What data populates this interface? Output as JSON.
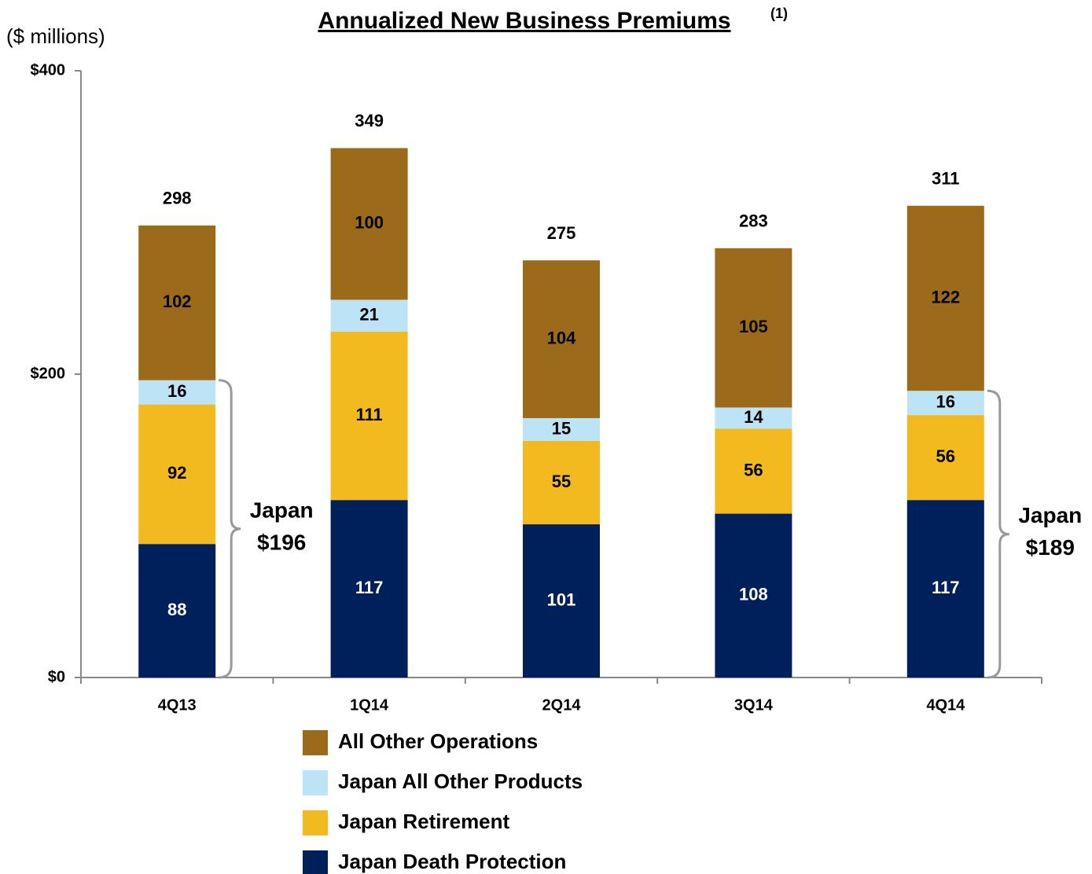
{
  "chart_data": {
    "type": "stacked_bar",
    "title": "Annualized New Business Premiums",
    "title_superscript": "(1)",
    "y_label": "($ millions)",
    "categories": [
      "4Q13",
      "1Q14",
      "2Q14",
      "3Q14",
      "4Q14"
    ],
    "series": [
      {
        "name": "Japan Death Protection",
        "color": "#00205b",
        "values": [
          88,
          117,
          101,
          108,
          117
        ]
      },
      {
        "name": "Japan Retirement",
        "color": "#f2ba1e",
        "values": [
          92,
          111,
          55,
          56,
          56
        ]
      },
      {
        "name": "Japan All Other Products",
        "color": "#bde3f7",
        "values": [
          16,
          21,
          15,
          14,
          16
        ]
      },
      {
        "name": "All Other Operations",
        "color": "#9b6a1a",
        "values": [
          102,
          100,
          104,
          105,
          122
        ]
      }
    ],
    "totals": [
      298,
      349,
      275,
      283,
      311
    ],
    "annotations": [
      {
        "category": "4Q13",
        "text": "Japan",
        "value": 196,
        "value_label": "$196"
      },
      {
        "category": "4Q14",
        "text": "Japan",
        "value": 189,
        "value_label": "$189"
      }
    ],
    "ylim": [
      0,
      400
    ],
    "yticks": [
      {
        "value": 0,
        "label": "$0"
      },
      {
        "value": 200,
        "label": "$200"
      },
      {
        "value": 400,
        "label": "$400"
      }
    ],
    "grid": false
  }
}
